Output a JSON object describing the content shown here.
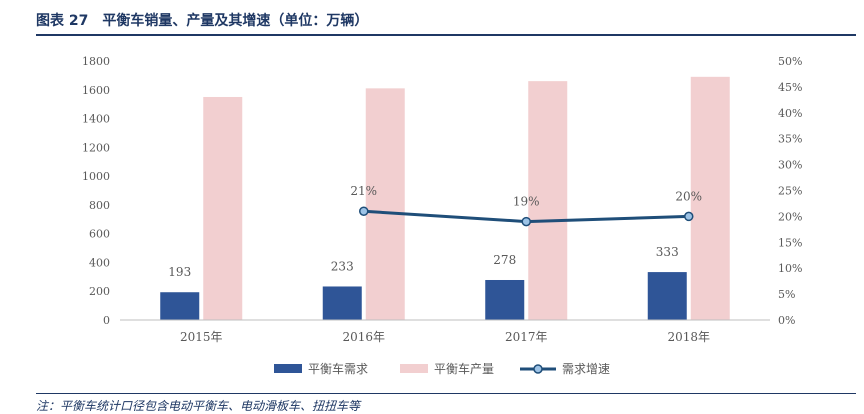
{
  "title": "图表 27　平衡车销量、产量及其增速（单位：万辆）",
  "note": "注：平衡车统计口径包含电动平衡车、电动滑板车、扭扭车等",
  "colors": {
    "demand": "#2f5597",
    "production": "#f2cfd0",
    "growth": "#1f4e79",
    "marker_fill": "#9dc3e6",
    "axis": "#595959",
    "title": "#1f3864"
  },
  "chart_data": {
    "type": "bar",
    "categories": [
      "2015年",
      "2016年",
      "2017年",
      "2018年"
    ],
    "series": [
      {
        "name": "平衡车需求",
        "type": "bar",
        "axis": "left",
        "values": [
          193,
          233,
          278,
          333
        ]
      },
      {
        "name": "平衡车产量",
        "type": "bar",
        "axis": "left",
        "values": [
          1550,
          1610,
          1660,
          1690
        ]
      },
      {
        "name": "需求增速",
        "type": "line",
        "axis": "right",
        "values": [
          null,
          0.21,
          0.19,
          0.2
        ]
      }
    ],
    "data_labels": {
      "demand": [
        "193",
        "233",
        "278",
        "333"
      ],
      "growth": [
        "",
        "21%",
        "19%",
        "20%"
      ]
    },
    "ylim": [
      0,
      1800
    ],
    "yticks": [
      "0",
      "200",
      "400",
      "600",
      "800",
      "1000",
      "1200",
      "1400",
      "1600",
      "1800"
    ],
    "y2lim": [
      0,
      0.5
    ],
    "y2ticks": [
      "0%",
      "5%",
      "10%",
      "15%",
      "20%",
      "25%",
      "30%",
      "35%",
      "40%",
      "45%",
      "50%"
    ],
    "legend_position": "bottom",
    "grid": false
  }
}
